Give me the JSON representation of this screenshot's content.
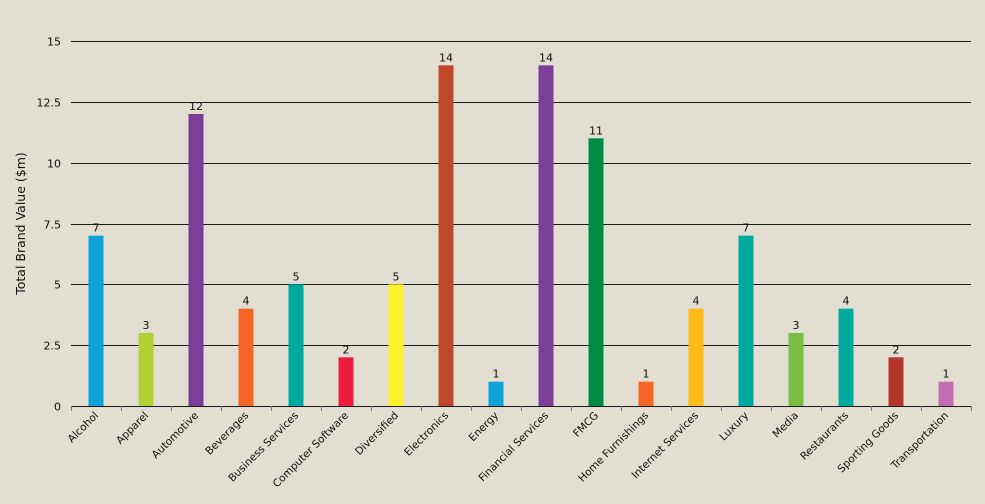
{
  "chart_data": {
    "type": "bar",
    "title": "",
    "xlabel": "",
    "ylabel": "Total Brand Value ($m)",
    "ylim": [
      0,
      15
    ],
    "yticks": [
      "0",
      "2.5",
      "5",
      "7.5",
      "10",
      "12.5",
      "15"
    ],
    "ytick_values": [
      0,
      2.5,
      5,
      7.5,
      10,
      12.5,
      15
    ],
    "grid": true,
    "legend": "none",
    "categories": [
      "Alcohol",
      "Apparel",
      "Automotive",
      "Beverages",
      "Business Services",
      "Computer Software",
      "Diversified",
      "Electronics",
      "Energy",
      "Financial Services",
      "FMCG",
      "Home Furnishings",
      "Internet Services",
      "Luxury",
      "Media",
      "Restaurants",
      "Sporting Goods",
      "Transportation"
    ],
    "values": [
      7,
      3,
      12,
      4,
      5,
      2,
      5,
      14,
      1,
      14,
      11,
      1,
      4,
      7,
      3,
      4,
      2,
      1
    ],
    "data_labels": [
      "7",
      "3",
      "12",
      "4",
      "5",
      "2",
      "5",
      "14",
      "1",
      "14",
      "11",
      "1",
      "4",
      "7",
      "3",
      "4",
      "2",
      "1"
    ],
    "colors": [
      "#0ea3d8",
      "#b1d235",
      "#7b3f98",
      "#f26522",
      "#00a99d",
      "#ed1c3f",
      "#fff22d",
      "#c0472b",
      "#0ea3d8",
      "#7b3f98",
      "#008b44",
      "#f26522",
      "#fcbb17",
      "#00a99d",
      "#79be43",
      "#00a99d",
      "#b5372a",
      "#c46db3"
    ],
    "background": "#e2ded2"
  }
}
